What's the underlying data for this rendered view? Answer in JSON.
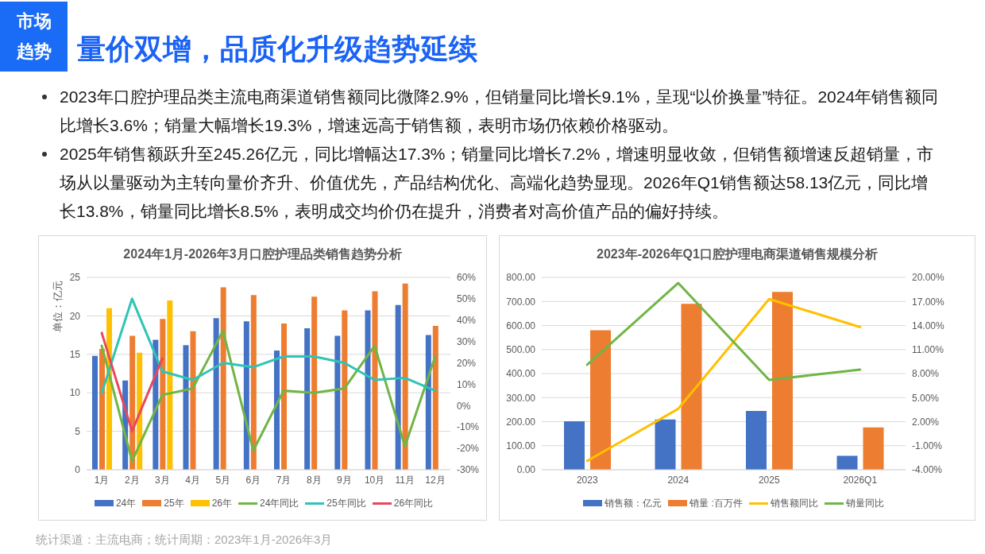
{
  "chart_data": [
    {
      "type": "other",
      "title": "量价双增，品质化升级趋势延续",
      "annotations": [
        "市场趋势",
        "2023年口腔护理品类主流电商渠道销售额同比微降2.9%，但销量同比增长9.1%，呈现“以价换量”特征。2024年销售额同比增长3.6%；销量大幅增长19.3%，增速远高于销售额，表明市场仍依赖价格驱动。",
        "2025年销售额跃升至245.26亿元，同比增幅达17.3%；销量同比增长7.2%，增速明显收敛，但销售额增速反超销量，市场从以量驱动为主转向量价齐升、价值优先，产品结构优化、高端化趋势显现。2026年Q1销售额达58.13亿元，同比增长13.8%，销量同比增长8.5%，表明成交均价仍在提升，消费者对高价值产品的偏好持续。",
        "统计渠道：主流电商；统计周期：2023年1月-2026年3月"
      ]
    },
    {
      "type": "bar",
      "title": "2024年1月-2026年3月口腔护理品类销售趋势分析",
      "ylabel": "单位：亿元",
      "categories": [
        "1月",
        "2月",
        "3月",
        "4月",
        "5月",
        "6月",
        "7月",
        "8月",
        "9月",
        "10月",
        "11月",
        "12月"
      ],
      "series": [
        {
          "name": "24年",
          "color": "#4472c4",
          "values": [
            14.8,
            11.6,
            16.9,
            16.2,
            19.7,
            19.3,
            15.5,
            18.4,
            17.4,
            20.7,
            21.4,
            17.5
          ]
        },
        {
          "name": "25年",
          "color": "#ed7d31",
          "values": [
            15.7,
            17.4,
            19.6,
            18.0,
            23.7,
            22.7,
            19.0,
            22.5,
            20.7,
            23.2,
            24.2,
            18.7
          ]
        },
        {
          "name": "26年",
          "color": "#ffc000",
          "values": [
            21.0,
            15.2,
            22.0,
            null,
            null,
            null,
            null,
            null,
            null,
            null,
            null,
            null
          ]
        },
        {
          "name": "24年同比",
          "type": "line",
          "axis": "y2",
          "color": "#70b545",
          "values": [
            28,
            -26,
            5,
            8,
            35,
            -21,
            7,
            6,
            8,
            28,
            -19,
            23
          ]
        },
        {
          "name": "25年同比",
          "type": "line",
          "axis": "y2",
          "color": "#2ec4b6",
          "values": [
            6,
            50,
            16,
            12,
            20,
            18,
            23,
            23,
            20,
            12,
            13,
            7
          ]
        },
        {
          "name": "26年同比",
          "type": "line",
          "axis": "y2",
          "color": "#e8475f",
          "values": [
            34,
            -12,
            22,
            null,
            null,
            null,
            null,
            null,
            null,
            null,
            null,
            null
          ]
        }
      ],
      "ylim": [
        0,
        25
      ],
      "yticks": [
        0,
        5,
        10,
        15,
        20,
        25
      ],
      "y2lim": [
        -30,
        60
      ],
      "y2ticks": [
        {
          "value": -30,
          "label": "-30%"
        },
        {
          "value": -20,
          "label": "-20%"
        },
        {
          "value": -10,
          "label": "-10%"
        },
        {
          "value": 0,
          "label": "0%"
        },
        {
          "value": 10,
          "label": "10%"
        },
        {
          "value": 20,
          "label": "20%"
        },
        {
          "value": 30,
          "label": "30%"
        },
        {
          "value": 40,
          "label": "40%"
        },
        {
          "value": 50,
          "label": "50%"
        },
        {
          "value": 60,
          "label": "60%"
        }
      ],
      "grid": "y",
      "legend": "bottom",
      "marker": "none"
    },
    {
      "type": "bar",
      "title": "2023年-2026年Q1口腔护理电商渠道销售规模分析",
      "categories": [
        "2023",
        "2024",
        "2025",
        "2026Q1"
      ],
      "series": [
        {
          "name": "销售额：亿元",
          "color": "#4472c4",
          "values": [
            202,
            209,
            245,
            58
          ]
        },
        {
          "name": "销量 :百万件",
          "color": "#ed7d31",
          "values": [
            580,
            690,
            740,
            176
          ]
        },
        {
          "name": "销售额同比",
          "type": "line",
          "axis": "y2",
          "color": "#ffc000",
          "values": [
            -2.9,
            3.6,
            17.3,
            13.8
          ]
        },
        {
          "name": "销量同比",
          "type": "line",
          "axis": "y2",
          "color": "#70b545",
          "values": [
            9.1,
            19.3,
            7.2,
            8.5
          ]
        }
      ],
      "ylim": [
        0,
        800
      ],
      "yticks": [
        {
          "value": 0,
          "label": "0.00"
        },
        {
          "value": 100,
          "label": "100.00"
        },
        {
          "value": 200,
          "label": "200.00"
        },
        {
          "value": 300,
          "label": "300.00"
        },
        {
          "value": 400,
          "label": "400.00"
        },
        {
          "value": 500,
          "label": "500.00"
        },
        {
          "value": 600,
          "label": "600.00"
        },
        {
          "value": 700,
          "label": "700.00"
        },
        {
          "value": 800,
          "label": "800.00"
        }
      ],
      "y2lim": [
        -4,
        20
      ],
      "y2ticks": [
        {
          "value": -4,
          "label": "-4.00%"
        },
        {
          "value": -1,
          "label": "-1.00%"
        },
        {
          "value": 2,
          "label": "2.00%"
        },
        {
          "value": 5,
          "label": "5.00%"
        },
        {
          "value": 8,
          "label": "8.00%"
        },
        {
          "value": 11,
          "label": "11.00%"
        },
        {
          "value": 14,
          "label": "14.00%"
        },
        {
          "value": 17,
          "label": "17.00%"
        },
        {
          "value": 20,
          "label": "20.00%"
        }
      ],
      "grid": "y",
      "legend": "bottom",
      "marker": "none"
    }
  ]
}
